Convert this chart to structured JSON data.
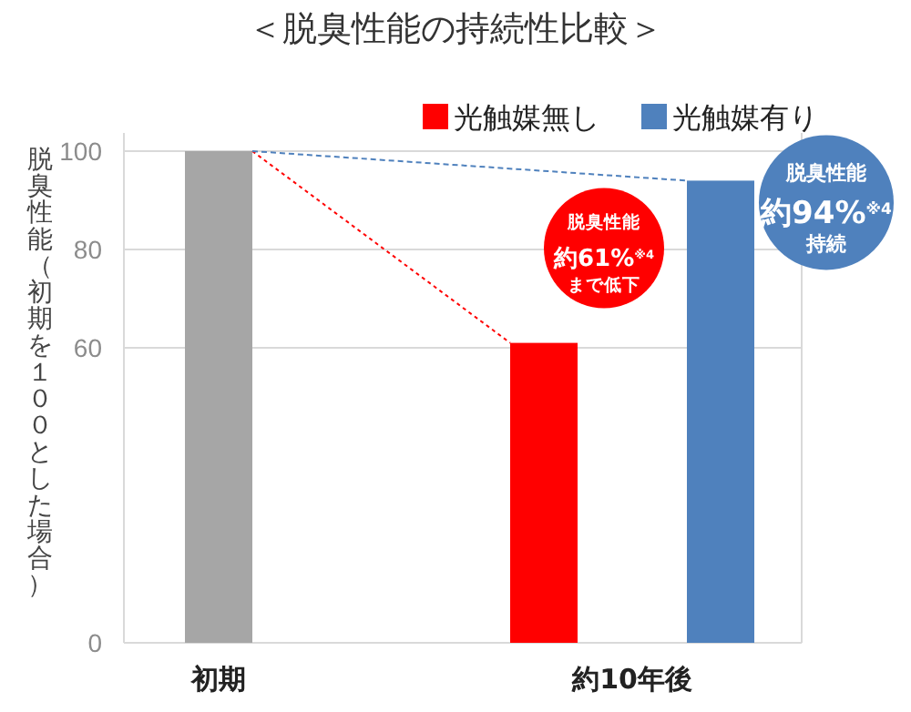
{
  "chart_data": {
    "type": "bar",
    "title": "＜脱臭性能の持続性比較＞",
    "ylabel": "脱臭性能（初期を１００とした場合）",
    "categories": [
      "初期",
      "約10年後"
    ],
    "series": [
      {
        "color": "#a6a6a6",
        "values": [
          100,
          null
        ]
      },
      {
        "name": "光触媒無し",
        "color": "#ff0000",
        "values": [
          null,
          61
        ]
      },
      {
        "name": "光触媒有り",
        "color": "#4f81bd",
        "values": [
          null,
          94
        ]
      }
    ],
    "ylim": [
      0,
      100
    ],
    "yticks": [
      0,
      60,
      80,
      100
    ],
    "grid": "y",
    "legend": "top right",
    "annotations": [
      "脱臭性能",
      "約61%$^{※4}$",
      "まで低下",
      "脱臭性能",
      "約94%$^{※4}$",
      "持続"
    ]
  }
}
